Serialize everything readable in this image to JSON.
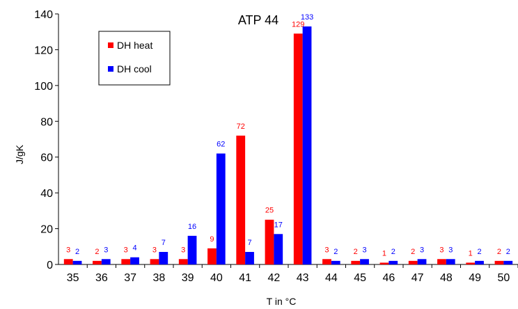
{
  "chart_data": {
    "type": "bar",
    "title": "ATP 44",
    "xlabel": "T in °C",
    "ylabel": "J/gK",
    "ylim": [
      0,
      140
    ],
    "yticks": [
      0,
      20,
      40,
      60,
      80,
      100,
      120,
      140
    ],
    "categories": [
      "35",
      "36",
      "37",
      "38",
      "39",
      "40",
      "41",
      "42",
      "43",
      "44",
      "45",
      "46",
      "47",
      "48",
      "49",
      "50"
    ],
    "series": [
      {
        "name": "DH heat",
        "color": "#ff0000",
        "values": [
          3,
          2,
          3,
          3,
          3,
          9,
          72,
          25,
          129,
          3,
          2,
          1,
          2,
          3,
          1,
          2
        ]
      },
      {
        "name": "DH cool",
        "color": "#0000ff",
        "values": [
          2,
          3,
          4,
          7,
          16,
          62,
          7,
          17,
          133,
          2,
          3,
          2,
          3,
          3,
          2,
          2
        ]
      }
    ],
    "legend_position": "top-left",
    "grid": false
  }
}
